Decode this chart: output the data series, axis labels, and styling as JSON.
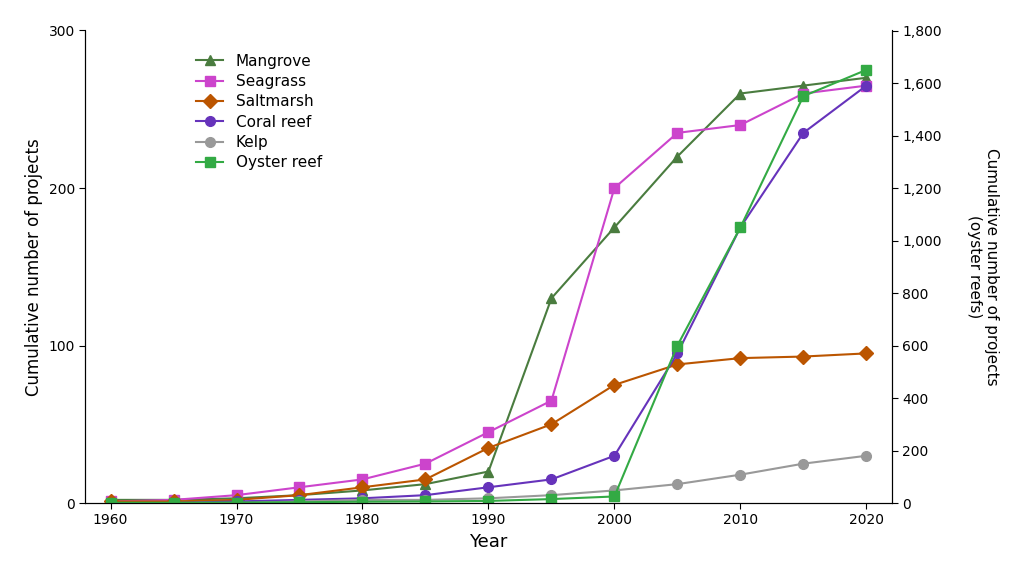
{
  "years": [
    1960,
    1965,
    1970,
    1975,
    1980,
    1985,
    1990,
    1995,
    2000,
    2005,
    2010,
    2015,
    2020
  ],
  "mangrove": [
    2,
    2,
    3,
    5,
    8,
    12,
    20,
    130,
    175,
    220,
    260,
    265,
    270
  ],
  "seagrass": [
    1,
    2,
    5,
    10,
    15,
    25,
    45,
    65,
    200,
    235,
    240,
    260,
    265
  ],
  "saltmarsh": [
    1,
    1,
    2,
    5,
    10,
    15,
    35,
    50,
    75,
    88,
    92,
    93,
    95
  ],
  "coral_reef": [
    0,
    0,
    1,
    2,
    3,
    5,
    10,
    15,
    30,
    95,
    175,
    235,
    265
  ],
  "kelp": [
    0,
    0,
    0,
    1,
    2,
    2,
    3,
    5,
    8,
    12,
    18,
    25,
    30
  ],
  "oyster_reef": [
    1,
    1,
    2,
    3,
    5,
    6,
    8,
    15,
    25,
    600,
    1050,
    1550,
    1650
  ],
  "mangrove_color": "#4a7c3f",
  "seagrass_color": "#cc44cc",
  "saltmarsh_color": "#bb5500",
  "coral_reef_color": "#6633bb",
  "kelp_color": "#999999",
  "oyster_reef_color": "#33aa44",
  "ylabel_left": "Cumulative number of projects",
  "ylabel_right": "Cumulative number of projects\n(oyster reefs)",
  "xlabel": "Year",
  "ylim_left": [
    0,
    300
  ],
  "ylim_right": [
    0,
    1800
  ],
  "yticks_left": [
    0,
    100,
    200,
    300
  ],
  "yticks_right": [
    0,
    200,
    400,
    600,
    800,
    1000,
    1200,
    1400,
    1600,
    1800
  ],
  "xticks": [
    1960,
    1970,
    1980,
    1990,
    2000,
    2010,
    2020
  ],
  "bg_color": "#ffffff",
  "legend_labels": [
    "Mangrove",
    "Seagrass",
    "Saltmarsh",
    "Coral reef",
    "Kelp",
    "Oyster reef"
  ]
}
